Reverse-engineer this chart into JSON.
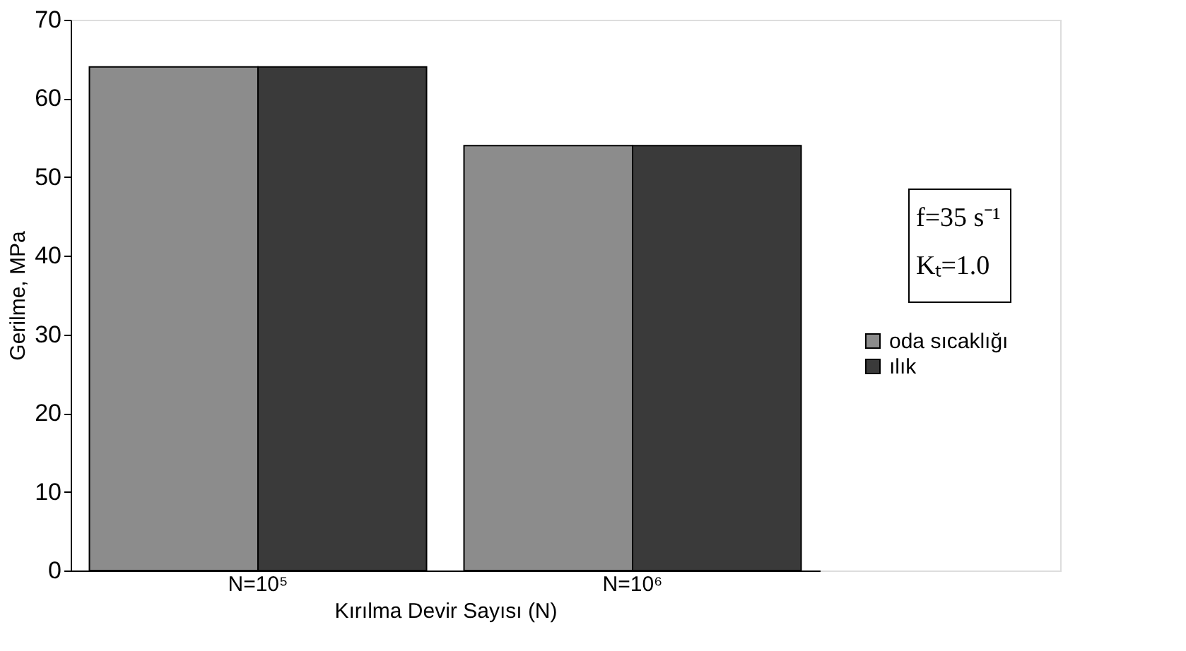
{
  "chart_data": {
    "type": "bar",
    "xlabel": "Kırılma Devir Sayısı (N)",
    "ylabel": "Gerilme, MPa",
    "categories": [
      "N=10⁵",
      "N=10⁶"
    ],
    "series": [
      {
        "name": "oda sıcaklığı",
        "color": "#8c8c8c",
        "values": [
          64,
          54
        ]
      },
      {
        "name": "ılık",
        "color": "#3a3a3a",
        "values": [
          64,
          54
        ]
      }
    ],
    "ylim": [
      0,
      70
    ],
    "yticks": [
      0,
      10,
      20,
      30,
      40,
      50,
      60,
      70
    ],
    "grid": false,
    "legend": "right",
    "annotations": [
      "f=35 s⁻¹",
      "Kₜ=1.0"
    ]
  }
}
